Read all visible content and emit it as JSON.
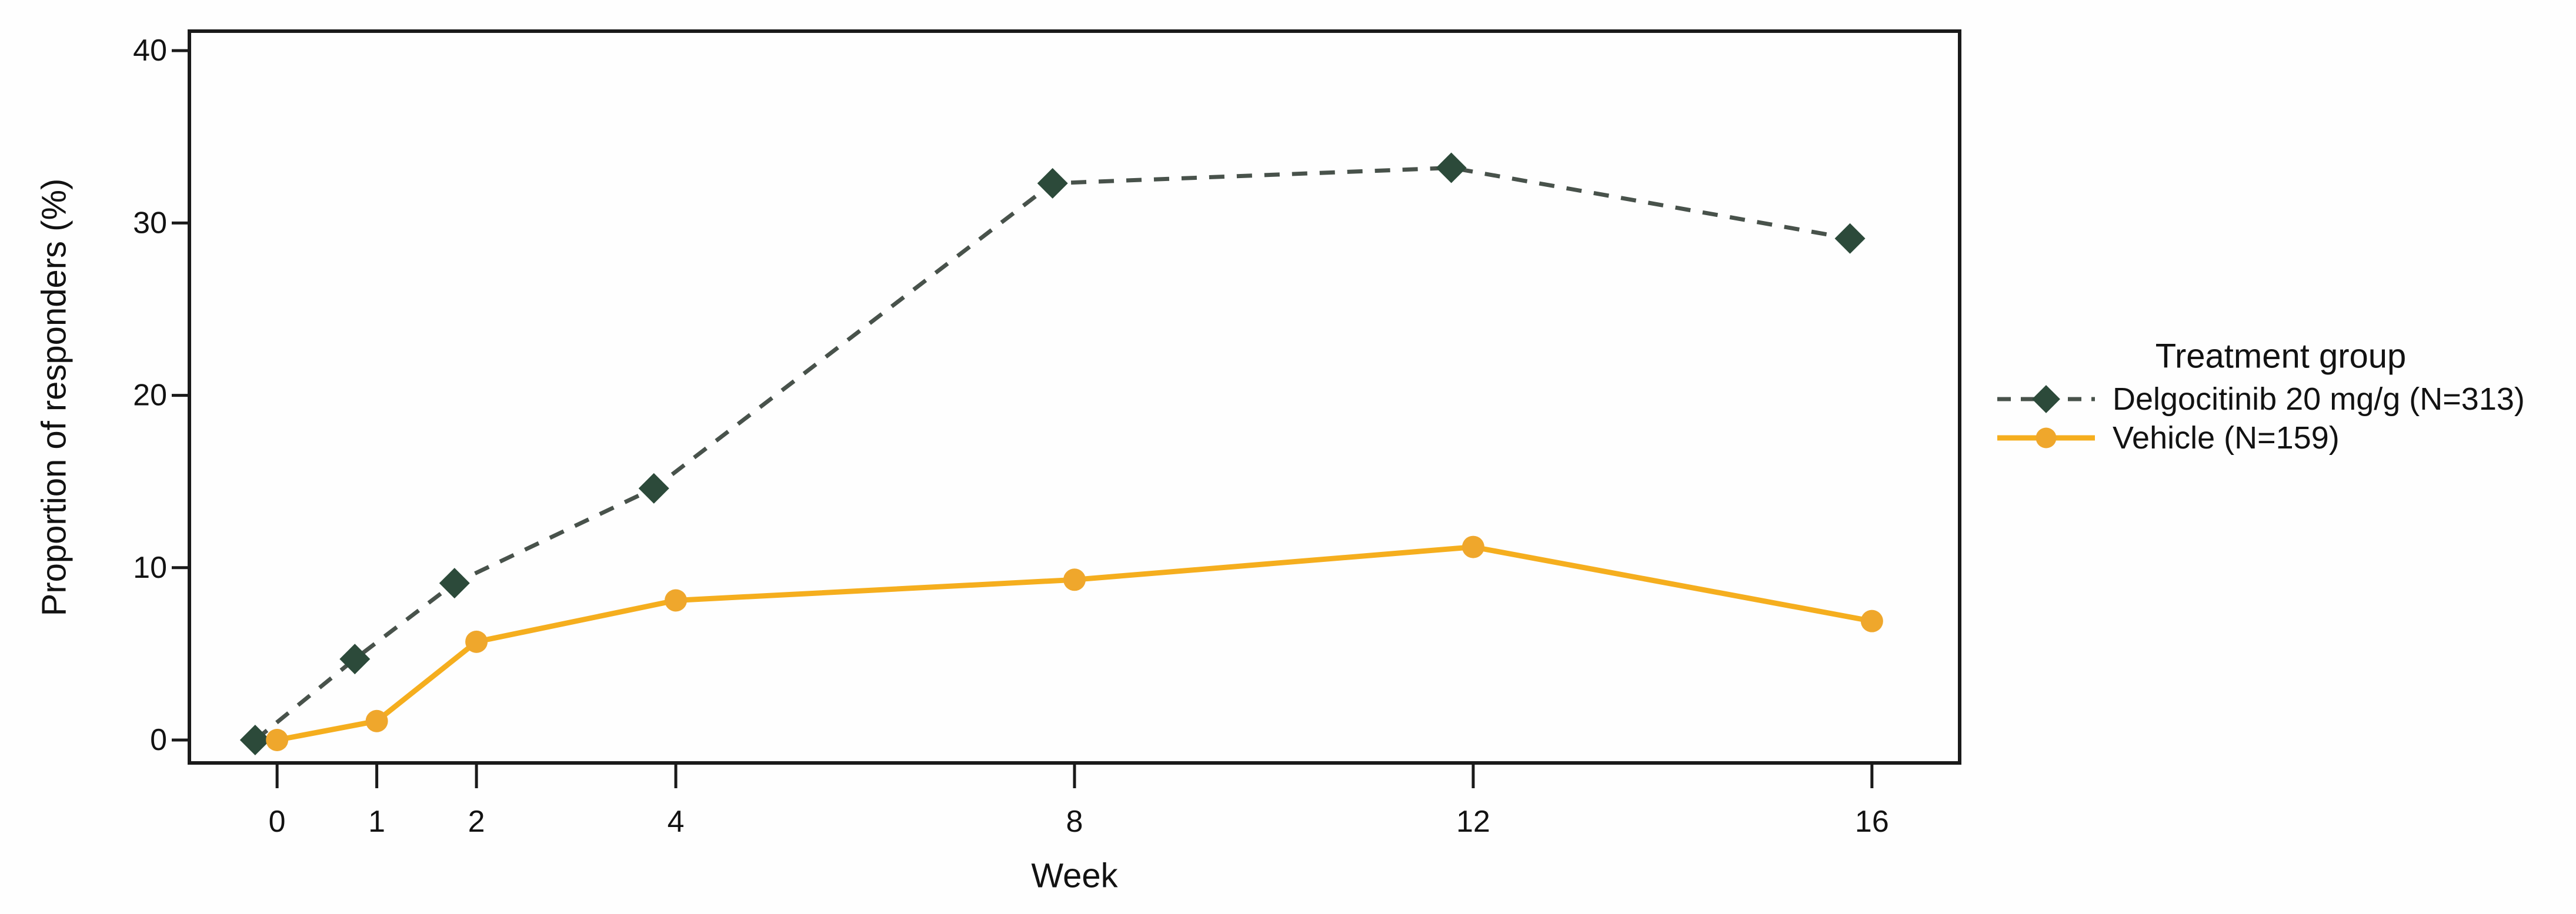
{
  "chart_data": {
    "type": "line",
    "title": "",
    "xlabel": "Week",
    "ylabel": "Proportion of responders (%)",
    "x": [
      0,
      1,
      2,
      4,
      8,
      12,
      16
    ],
    "x_tick_labels": [
      "0",
      "1",
      "2",
      "4",
      "8",
      "12",
      "16"
    ],
    "y_ticks": [
      0,
      10,
      20,
      30,
      40
    ],
    "x_range": [
      -0.88,
      16.88
    ],
    "y_range": [
      -1.33,
      41.13
    ],
    "grid": false,
    "frame_color": "#1a1a1a",
    "legend": {
      "title": "Treatment group",
      "position": "right-center"
    },
    "series": [
      {
        "name": "Delgocitinib 20 mg/g (N=313)",
        "marker": "diamond",
        "line_style": "dashed",
        "marker_color": "#2C4A3A",
        "line_color": "#48524B",
        "x_offset_weeks": -0.22,
        "weeks": [
          0,
          1,
          2,
          4,
          8,
          12,
          16
        ],
        "values": [
          0.0,
          4.7,
          9.1,
          14.6,
          32.3,
          33.2,
          29.1
        ]
      },
      {
        "name": "Vehicle (N=159)",
        "marker": "circle",
        "line_style": "solid",
        "marker_color": "#EFA72C",
        "line_color": "#F5AE1E",
        "x_offset_weeks": 0,
        "weeks": [
          0,
          1,
          2,
          4,
          8,
          12,
          16
        ],
        "values": [
          0.0,
          1.1,
          5.7,
          8.1,
          9.3,
          11.2,
          6.9
        ]
      }
    ]
  }
}
